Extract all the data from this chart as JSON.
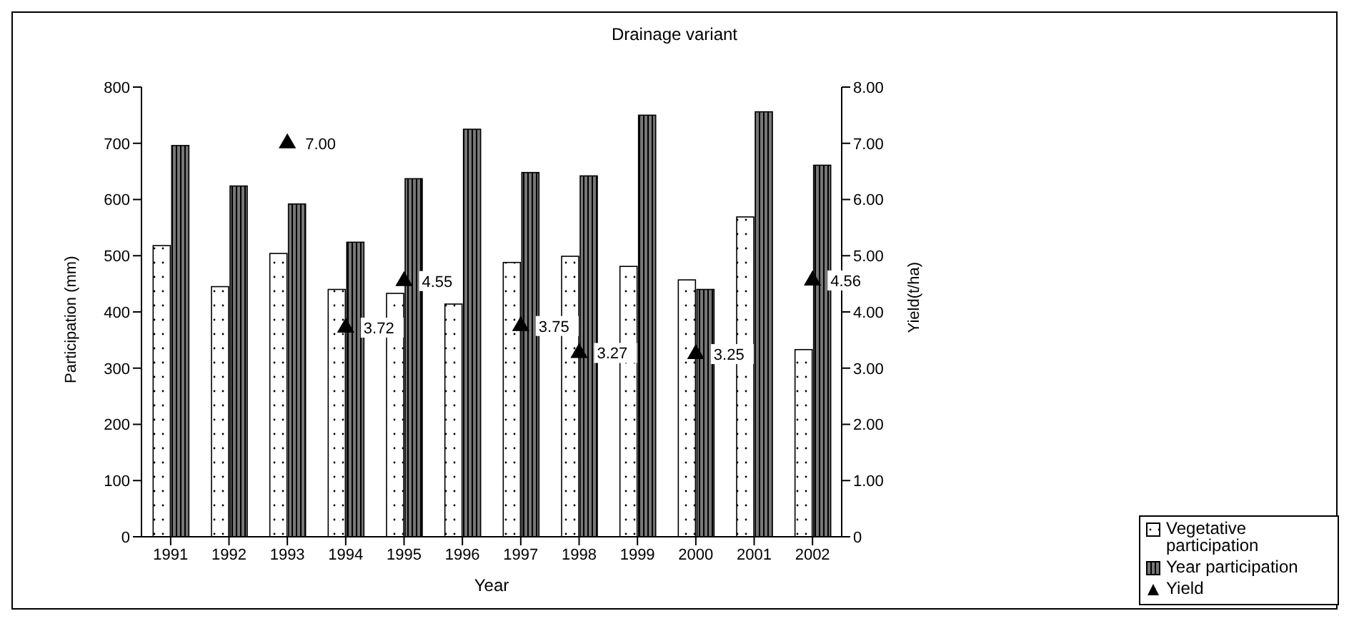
{
  "chart_data": {
    "type": "bar",
    "title": "Drainage variant",
    "xlabel": "Year",
    "ylabel": "Participation (mm)",
    "y2label": "Yield(t/ha)",
    "categories": [
      "1991",
      "1992",
      "1993",
      "1994",
      "1995",
      "1996",
      "1997",
      "1998",
      "1999",
      "2000",
      "2001",
      "2002"
    ],
    "series": [
      {
        "name": "Vegetative participation",
        "color": "#ffffff",
        "values": [
          518,
          445,
          504,
          440,
          433,
          414,
          488,
          499,
          481,
          457,
          569,
          333
        ]
      },
      {
        "name": "Year participation",
        "color": "#777777",
        "values": [
          696,
          624,
          592,
          524,
          637,
          725,
          648,
          642,
          750,
          440,
          756,
          661
        ]
      },
      {
        "name": "Yield",
        "type": "scatter",
        "axis": "y2",
        "color": "#000000",
        "marker": "triangle",
        "values": [
          null,
          null,
          7.0,
          3.72,
          4.55,
          null,
          3.75,
          3.27,
          null,
          3.25,
          null,
          4.56
        ],
        "value_labels": [
          null,
          null,
          "7.00",
          "3.72",
          "4.55",
          null,
          "3.75",
          "3.27",
          null,
          "3.25",
          null,
          "4.56"
        ]
      }
    ],
    "ylim": [
      0,
      800
    ],
    "yticks": [
      0,
      100,
      200,
      300,
      400,
      500,
      600,
      700,
      800
    ],
    "y2lim": [
      0,
      8
    ],
    "y2ticks": [
      {
        "value": 0,
        "label": "0"
      },
      {
        "value": 1,
        "label": "1.00"
      },
      {
        "value": 2,
        "label": "2.00"
      },
      {
        "value": 3,
        "label": "3.00"
      },
      {
        "value": 4,
        "label": "4.00"
      },
      {
        "value": 5,
        "label": "5.00"
      },
      {
        "value": 6,
        "label": "6.00"
      },
      {
        "value": 7,
        "label": "7.00"
      },
      {
        "value": 8,
        "label": "8.00"
      }
    ],
    "grid": false,
    "legend": "bottom right"
  }
}
